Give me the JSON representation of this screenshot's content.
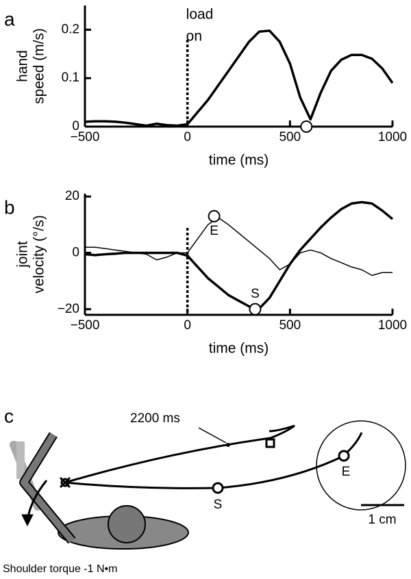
{
  "chart_data": [
    {
      "type": "line",
      "panel_label": "a",
      "ylabel": [
        "hand",
        "speed (m/s)"
      ],
      "xlabel": "time (ms)",
      "annotation": [
        "load",
        "on"
      ],
      "vline": 0,
      "x": [
        -500,
        -450,
        -400,
        -350,
        -300,
        -250,
        -200,
        -150,
        -100,
        -50,
        0,
        50,
        100,
        150,
        200,
        250,
        300,
        350,
        400,
        450,
        500,
        550,
        600,
        650,
        700,
        750,
        800,
        850,
        900,
        950,
        1000
      ],
      "series": [
        {
          "color": "#000000",
          "linewidth": 3.5,
          "values": [
            0.01,
            0.011,
            0.011,
            0.01,
            0.008,
            0.005,
            0.002,
            0.006,
            0.003,
            0.002,
            0.005,
            0.03,
            0.055,
            0.085,
            0.115,
            0.145,
            0.175,
            0.196,
            0.198,
            0.175,
            0.13,
            0.06,
            0.015,
            0.07,
            0.115,
            0.138,
            0.148,
            0.148,
            0.14,
            0.12,
            0.09
          ]
        }
      ],
      "markers": [
        {
          "x": 580,
          "y": 0
        }
      ],
      "xlim": [
        -500,
        1000
      ],
      "ylim": [
        0,
        0.25
      ],
      "xticks": [
        {
          "value": -500,
          "label": "−500"
        },
        0,
        500,
        1000
      ],
      "yticks": [
        0,
        0.1,
        0.2
      ]
    },
    {
      "type": "line",
      "panel_label": "b",
      "ylabel": [
        "joint",
        "velocity (°/s)"
      ],
      "xlabel": "time (ms)",
      "vline": 0,
      "x": [
        -500,
        -450,
        -400,
        -350,
        -300,
        -250,
        -200,
        -150,
        -100,
        -50,
        0,
        50,
        100,
        150,
        200,
        250,
        300,
        350,
        400,
        450,
        500,
        550,
        600,
        650,
        700,
        750,
        800,
        850,
        900,
        950,
        1000
      ],
      "series": [
        {
          "color": "#000000",
          "linewidth": 3.5,
          "values": [
            -0.5,
            -0.8,
            -0.5,
            -0.3,
            0,
            0,
            0,
            0,
            0,
            0,
            -1,
            -5,
            -9,
            -12,
            -15,
            -17,
            -19,
            -19.8,
            -16,
            -10,
            -4,
            1,
            5,
            9,
            12.5,
            15.5,
            17.5,
            18,
            17.5,
            15,
            12
          ]
        },
        {
          "color": "#000000",
          "linewidth": 1.5,
          "values": [
            2,
            2,
            1.5,
            1,
            0.5,
            0,
            -0.5,
            -2.5,
            -1.5,
            0,
            0,
            5,
            10,
            12.5,
            10,
            7,
            4,
            1,
            -2,
            -6,
            -4,
            0,
            1,
            0,
            -2,
            -3.5,
            -5,
            -6,
            -8,
            -7,
            -7
          ]
        }
      ],
      "markers": [
        {
          "label": "E",
          "x": 130,
          "y": 13
        },
        {
          "label": "S",
          "x": 330,
          "y": -20
        }
      ],
      "xlim": [
        -500,
        1000
      ],
      "ylim": [
        -22,
        21
      ],
      "xticks": [
        {
          "value": -500,
          "label": "−500"
        },
        0,
        500,
        1000
      ],
      "yticks": [
        {
          "value": -20,
          "label": "−20"
        },
        0,
        20
      ]
    }
  ],
  "diagram": {
    "label": "c",
    "time_label": "2200 ms",
    "start_label": "S",
    "end_label": "E",
    "scale_bar": "1 cm",
    "caption": "Shoulder torque -1 N•m"
  }
}
